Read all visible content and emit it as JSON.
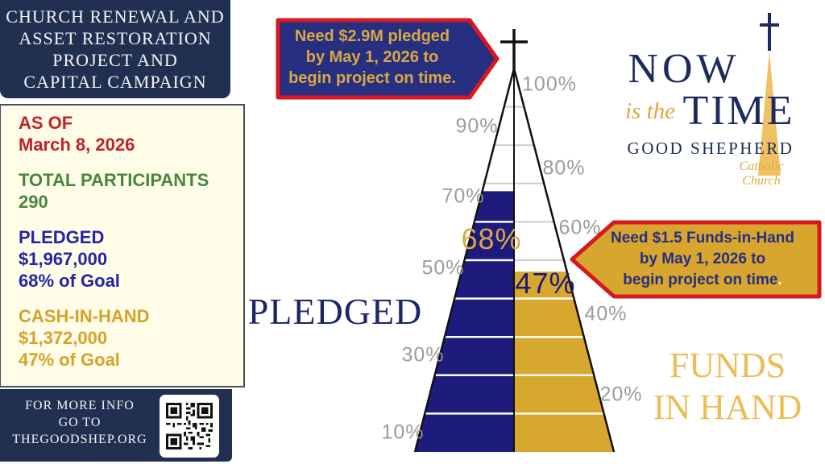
{
  "colors": {
    "header_navy": "#212f51",
    "cream": "#fffce8",
    "stat_red": "#c32127",
    "stat_green": "#45873f",
    "stat_blue": "#2424a6",
    "stat_gold": "#d5a32c",
    "callout_red": "#d6191f",
    "callout_navy": "#262f80",
    "callout_gold_fill": "#d8a52f",
    "callout_gold_text": "#d9a844",
    "chart_navy": "#1d1b7b",
    "chart_gold": "#d7a72e",
    "tick_gray": "#9c9c9c",
    "logo_navy": "#1c2a5e",
    "logo_gold": "#dfa93f",
    "funds_label_gold": "#edbd55",
    "pledged_label_navy": "#1d2568"
  },
  "left_panel": {
    "header_lines": [
      "CHURCH RENEWAL AND",
      "ASSET RESTORATION",
      "PROJECT AND",
      "CAPITAL CAMPAIGN"
    ],
    "stats": [
      {
        "lines": [
          "AS OF",
          "March 8, 2026"
        ]
      },
      {
        "lines": [
          "TOTAL PARTICIPANTS",
          "290"
        ]
      },
      {
        "lines": [
          "PLEDGED",
          "$1,967,000",
          "68% of Goal"
        ]
      },
      {
        "lines": [
          "CASH-IN-HAND",
          "$1,372,000",
          "47% of Goal"
        ]
      }
    ],
    "footer_lines": [
      "FOR MORE INFO",
      "GO TO",
      "THEGOODSHEP.ORG"
    ]
  },
  "callouts": {
    "pledge": {
      "lines": [
        "Need $2.9M pledged",
        "by May 1, 2026 to",
        "begin project on time."
      ]
    },
    "funds": {
      "lines": [
        "Need $1.5 Funds-in-Hand",
        "by May 1, 2026 to"
      ],
      "last_line_main": "begin project on time",
      "last_line_period": "."
    }
  },
  "logo": {
    "top_word": "NOW",
    "middle_script": "is the",
    "bottom_word": "TIME",
    "org_name": "GOOD SHEPHERD",
    "org_sub": "Catholic Church"
  },
  "chart_data": {
    "type": "bar",
    "variant": "split steeple (triangle) progress thermometer with cross finial",
    "categories": [
      "Pledged",
      "Funds in Hand"
    ],
    "series": [
      {
        "name": "Pledged",
        "value_pct": 68,
        "label": "68%",
        "side": "left",
        "color": "#1d1b7b"
      },
      {
        "name": "Funds in Hand",
        "value_pct": 47,
        "label": "47%",
        "side": "right",
        "color": "#d7a72e"
      }
    ],
    "axis_ticks": [
      "10%",
      "20%",
      "30%",
      "40%",
      "50%",
      "60%",
      "70%",
      "80%",
      "90%",
      "100%"
    ],
    "ylim": [
      0,
      100
    ],
    "grid": "horizontal lines every 10%, alternating side tick labels",
    "left_axis_label": "PLEDGED",
    "right_axis_label_lines": [
      "FUNDS",
      "IN HAND"
    ],
    "legend_position": "none"
  }
}
